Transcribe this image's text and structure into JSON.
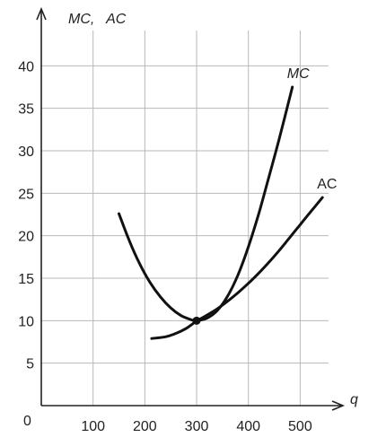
{
  "chart_data": {
    "type": "line",
    "title": "",
    "xlabel": "q",
    "ylabel": "MC,   AC",
    "origin_label": "0",
    "xlim": [
      0,
      560
    ],
    "ylim": [
      0,
      45
    ],
    "grid": true,
    "x_ticks": [
      100,
      200,
      300,
      400,
      500
    ],
    "y_ticks": [
      5,
      10,
      15,
      20,
      25,
      30,
      35,
      40
    ],
    "series": [
      {
        "name": "MC",
        "label_style": "italic",
        "x": [
          150,
          170,
          190,
          210,
          230,
          250,
          270,
          290,
          300,
          320,
          340,
          360,
          380,
          400,
          420,
          440,
          460,
          485
        ],
        "y": [
          22.6,
          19.4,
          16.7,
          14.5,
          12.8,
          11.5,
          10.6,
          10.1,
          10.0,
          10.3,
          11.2,
          12.9,
          15.4,
          18.7,
          22.6,
          27.0,
          31.5,
          37.5
        ]
      },
      {
        "name": "AC",
        "label_style": "normal",
        "x": [
          213,
          240,
          260,
          280,
          300,
          320,
          340,
          360,
          380,
          400,
          420,
          440,
          460,
          480,
          500,
          520,
          543
        ],
        "y": [
          7.9,
          8.1,
          8.5,
          9.1,
          9.95,
          10.65,
          11.4,
          12.3,
          13.3,
          14.4,
          15.6,
          16.9,
          18.3,
          19.8,
          21.3,
          22.8,
          24.5
        ]
      }
    ],
    "annotations": [
      {
        "type": "point",
        "x": 300,
        "y": 10
      }
    ]
  }
}
